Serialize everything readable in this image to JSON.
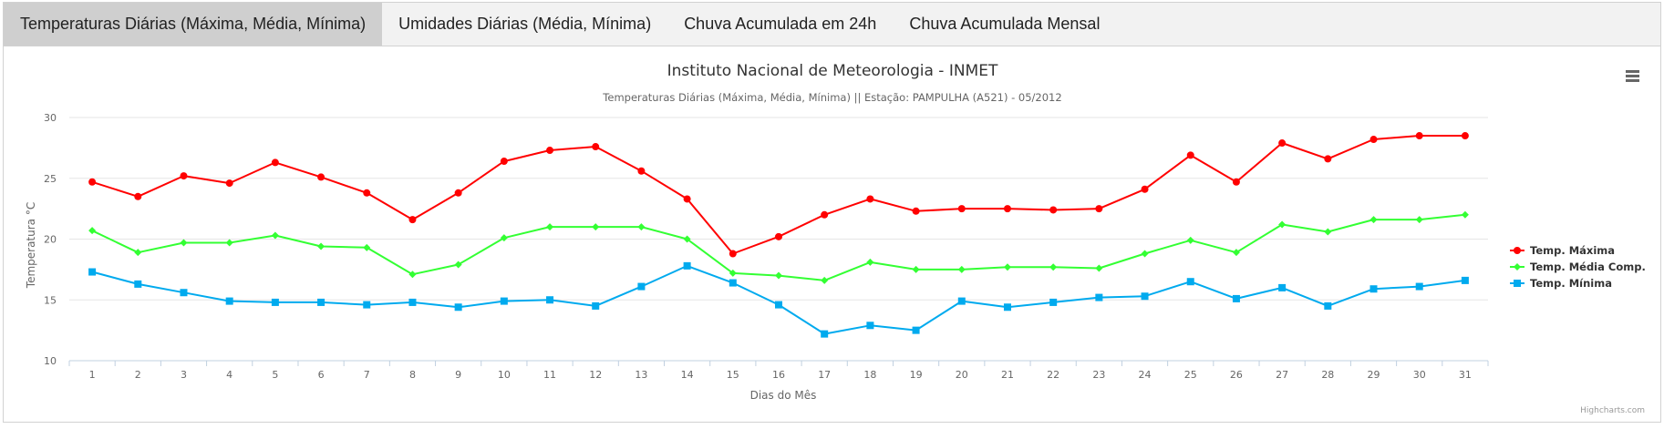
{
  "tabs": [
    {
      "label": "Temperaturas Diárias (Máxima, Média, Mínima)",
      "active": true
    },
    {
      "label": "Umidades Diárias (Média, Mínima)",
      "active": false
    },
    {
      "label": "Chuva Acumulada em 24h",
      "active": false
    },
    {
      "label": "Chuva Acumulada Mensal",
      "active": false
    }
  ],
  "menu_icon": "hamburger-menu-icon",
  "credits": "Highcharts.com",
  "chart_data": {
    "type": "line",
    "title": "Instituto Nacional de Meteorologia - INMET",
    "subtitle": "Temperaturas Diárias (Máxima, Média, Mínima) || Estação: PAMPULHA (A521) - 05/2012",
    "xlabel": "Dias do Mês",
    "ylabel": "Temperatura °C",
    "ylim": [
      10,
      30
    ],
    "yticks": [
      10,
      15,
      20,
      25,
      30
    ],
    "grid": true,
    "legend_position": "right",
    "x": [
      1,
      2,
      3,
      4,
      5,
      6,
      7,
      8,
      9,
      10,
      11,
      12,
      13,
      14,
      15,
      16,
      17,
      18,
      19,
      20,
      21,
      22,
      23,
      24,
      25,
      26,
      27,
      28,
      29,
      30,
      31
    ],
    "series": [
      {
        "name": "Temp. Máxima",
        "color": "#ff0000",
        "marker": "circle",
        "values": [
          24.7,
          23.5,
          25.2,
          24.6,
          26.3,
          25.1,
          23.8,
          21.6,
          23.8,
          26.4,
          27.3,
          27.6,
          25.6,
          23.3,
          18.8,
          20.2,
          22.0,
          23.3,
          22.3,
          22.5,
          22.5,
          22.4,
          22.5,
          24.1,
          26.9,
          24.7,
          27.9,
          26.6,
          28.2,
          28.5,
          28.5
        ]
      },
      {
        "name": "Temp. Média Comp.",
        "color": "#33ff33",
        "marker": "diamond",
        "values": [
          20.7,
          18.9,
          19.7,
          19.7,
          20.3,
          19.4,
          19.3,
          17.1,
          17.9,
          20.1,
          21.0,
          21.0,
          21.0,
          20.0,
          17.2,
          17.0,
          16.6,
          18.1,
          17.5,
          17.5,
          17.7,
          17.7,
          17.6,
          18.8,
          19.9,
          18.9,
          21.2,
          20.6,
          21.6,
          21.6,
          22.0
        ]
      },
      {
        "name": "Temp. Mínima",
        "color": "#00aaee",
        "marker": "square",
        "values": [
          17.3,
          16.3,
          15.6,
          14.9,
          14.8,
          14.8,
          14.6,
          14.8,
          14.4,
          14.9,
          15.0,
          14.5,
          16.1,
          17.8,
          16.4,
          14.6,
          12.2,
          12.9,
          12.5,
          14.9,
          14.4,
          14.8,
          15.2,
          15.3,
          16.5,
          15.1,
          16.0,
          14.5,
          15.9,
          16.1,
          16.6
        ]
      }
    ]
  }
}
